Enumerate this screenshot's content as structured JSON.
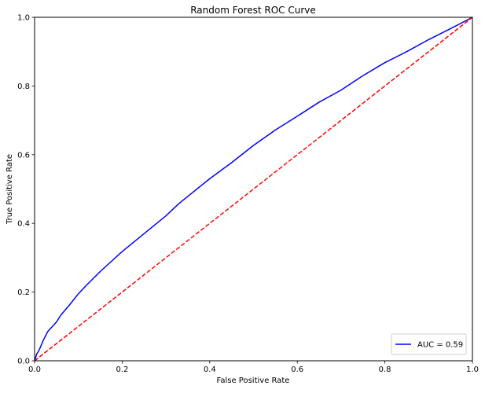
{
  "chart_data": {
    "type": "line",
    "title": "Random Forest ROC Curve",
    "xlabel": "False Positive Rate",
    "ylabel": "True Positive Rate",
    "xlim": [
      0,
      1
    ],
    "ylim": [
      0,
      1
    ],
    "xticks": [
      "0.0",
      "0.2",
      "0.4",
      "0.6",
      "0.8",
      "1.0"
    ],
    "yticks": [
      "0.0",
      "0.2",
      "0.4",
      "0.6",
      "0.8",
      "1.0"
    ],
    "grid": false,
    "legend_position": "lower right",
    "series": [
      {
        "name": "AUC = 0.59",
        "color": "#0000ff",
        "style": "solid",
        "x": [
          0.0,
          0.005,
          0.01,
          0.02,
          0.03,
          0.05,
          0.06,
          0.08,
          0.1,
          0.12,
          0.15,
          0.2,
          0.25,
          0.3,
          0.33,
          0.36,
          0.4,
          0.45,
          0.5,
          0.55,
          0.6,
          0.65,
          0.7,
          0.75,
          0.8,
          0.85,
          0.9,
          0.95,
          1.0
        ],
        "y": [
          0.0,
          0.02,
          0.03,
          0.06,
          0.085,
          0.113,
          0.133,
          0.163,
          0.195,
          0.222,
          0.26,
          0.318,
          0.37,
          0.422,
          0.458,
          0.489,
          0.53,
          0.577,
          0.627,
          0.672,
          0.712,
          0.753,
          0.788,
          0.83,
          0.868,
          0.9,
          0.935,
          0.967,
          1.0
        ]
      },
      {
        "name": "",
        "color": "#ff0000",
        "style": "dashed",
        "x": [
          0,
          1
        ],
        "y": [
          0,
          1
        ]
      }
    ]
  }
}
